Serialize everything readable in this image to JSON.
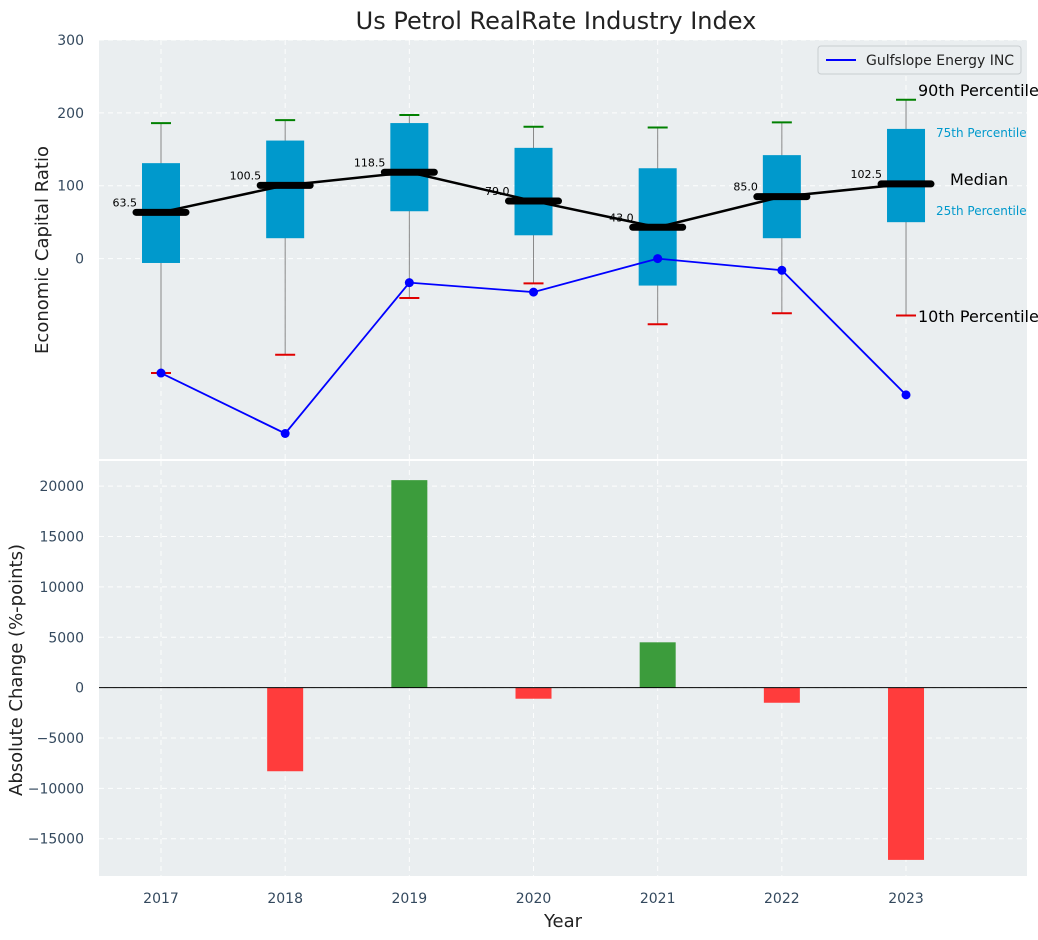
{
  "chart_data": {
    "type": "box_and_bar",
    "title": "Us Petrol RealRate Industry Index",
    "colors": {
      "panel_bg": "#eaeef0",
      "box": "#0099cc",
      "median": "#000000",
      "whisker": "#888888",
      "p90": "#008000",
      "p10": "#e00000",
      "company_line": "#0000ff",
      "bar_up": "#3c9c3c",
      "bar_down": "#ff3c3c"
    },
    "x": [
      "2017",
      "2018",
      "2019",
      "2020",
      "2021",
      "2022",
      "2023"
    ],
    "xlabel": "Year",
    "top_panel": {
      "ylabel": "Economic Capital Ratio",
      "ylim": [
        -275,
        300
      ],
      "yticks": [
        "300",
        "200",
        "100",
        "0"
      ],
      "ytick_values": [
        300,
        200,
        100,
        0
      ],
      "p10": [
        -157,
        -132,
        -54,
        -34,
        -90,
        -75,
        -78
      ],
      "p25": [
        -6,
        28,
        65,
        32,
        -37,
        28,
        50
      ],
      "median": [
        63.5,
        100.5,
        118.5,
        79.0,
        43.0,
        85.0,
        102.5
      ],
      "median_labels": [
        "63.5",
        "100.5",
        "118.5",
        "79.0",
        "43.0",
        "85.0",
        "102.5"
      ],
      "p75": [
        131,
        162,
        186,
        152,
        124,
        142,
        178
      ],
      "p90": [
        186,
        190,
        197,
        181,
        180,
        187,
        218
      ],
      "company": [
        -157,
        -240,
        -33,
        -46,
        0,
        -16,
        -187
      ],
      "legend": [
        "Gulfslope Energy INC"
      ],
      "legend_position": "top-right",
      "annotations": {
        "p90": "90th Percentile",
        "p75": "75th Percentile",
        "median": "Median",
        "p25": "25th Percentile",
        "p10": "10th Percentile"
      }
    },
    "bottom_panel": {
      "ylabel": "Absolute Change (%-points)",
      "ylim": [
        -18700,
        22500
      ],
      "yticks": [
        "20000",
        "15000",
        "10000",
        "5000",
        "0",
        "−5000",
        "−10000",
        "−15000"
      ],
      "ytick_values": [
        20000,
        15000,
        10000,
        5000,
        0,
        -5000,
        -10000,
        -15000
      ],
      "values": [
        0,
        -8300,
        20600,
        -1100,
        4500,
        -1500,
        -17100
      ]
    }
  }
}
